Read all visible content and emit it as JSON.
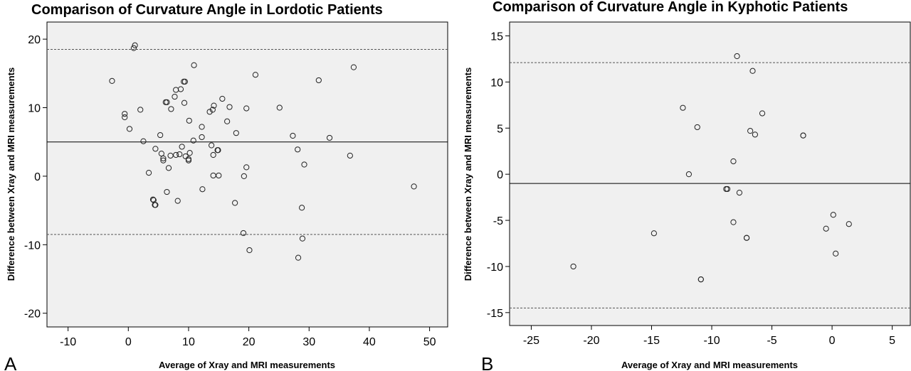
{
  "chart_data": [
    {
      "type": "scatter",
      "panel_label": "A",
      "title": "Comparison of Curvature Angle in Lordotic Patients",
      "xlabel": "Average of Xray and MRI measurements",
      "ylabel": "Difference between Xray and MRI measurements",
      "xlim": [
        -13.5,
        53
      ],
      "ylim": [
        -22,
        22.5
      ],
      "xticks": [
        -10,
        0,
        10,
        20,
        30,
        40,
        50
      ],
      "yticks": [
        -20,
        -10,
        0,
        10,
        20
      ],
      "grid": false,
      "background": "#f0f0f0",
      "reference_lines": {
        "mean": 5.0,
        "upper": 18.5,
        "lower": -8.5
      },
      "points": [
        [
          1.1,
          19.1
        ],
        [
          0.9,
          18.7
        ],
        [
          -2.7,
          13.9
        ],
        [
          37.4,
          15.9
        ],
        [
          31.6,
          14.0
        ],
        [
          21.1,
          14.8
        ],
        [
          10.9,
          16.2
        ],
        [
          9.4,
          13.8
        ],
        [
          9.2,
          13.8
        ],
        [
          8.7,
          12.7
        ],
        [
          7.9,
          12.6
        ],
        [
          7.7,
          11.6
        ],
        [
          6.2,
          10.8
        ],
        [
          6.4,
          10.8
        ],
        [
          9.3,
          10.7
        ],
        [
          15.6,
          11.3
        ],
        [
          16.8,
          10.1
        ],
        [
          14.2,
          10.3
        ],
        [
          14.0,
          9.7
        ],
        [
          13.5,
          9.4
        ],
        [
          7.1,
          9.8
        ],
        [
          2.0,
          9.7
        ],
        [
          -0.6,
          9.1
        ],
        [
          -0.6,
          8.6
        ],
        [
          10.1,
          8.1
        ],
        [
          16.4,
          8.0
        ],
        [
          25.1,
          10.0
        ],
        [
          19.6,
          9.9
        ],
        [
          0.2,
          6.9
        ],
        [
          12.2,
          7.2
        ],
        [
          17.9,
          6.3
        ],
        [
          27.3,
          5.9
        ],
        [
          33.4,
          5.6
        ],
        [
          12.2,
          5.7
        ],
        [
          10.8,
          5.2
        ],
        [
          2.5,
          5.1
        ],
        [
          5.3,
          6.0
        ],
        [
          13.8,
          4.5
        ],
        [
          8.9,
          4.3
        ],
        [
          4.5,
          4.0
        ],
        [
          14.9,
          3.8
        ],
        [
          14.8,
          3.8
        ],
        [
          28.1,
          3.9
        ],
        [
          14.1,
          3.1
        ],
        [
          5.5,
          3.3
        ],
        [
          7.0,
          3.0
        ],
        [
          7.9,
          3.1
        ],
        [
          8.5,
          3.2
        ],
        [
          9.5,
          2.9
        ],
        [
          10.2,
          3.4
        ],
        [
          10.0,
          2.5
        ],
        [
          10.0,
          2.3
        ],
        [
          5.8,
          2.6
        ],
        [
          5.8,
          2.3
        ],
        [
          36.8,
          3.0
        ],
        [
          29.2,
          1.7
        ],
        [
          6.7,
          1.2
        ],
        [
          19.6,
          1.3
        ],
        [
          3.4,
          0.5
        ],
        [
          14.1,
          0.1
        ],
        [
          15.0,
          0.1
        ],
        [
          19.2,
          0.0
        ],
        [
          6.4,
          -2.3
        ],
        [
          12.3,
          -1.9
        ],
        [
          47.4,
          -1.5
        ],
        [
          4.1,
          -3.4
        ],
        [
          4.2,
          -3.5
        ],
        [
          8.2,
          -3.6
        ],
        [
          4.4,
          -4.2
        ],
        [
          4.5,
          -4.2
        ],
        [
          17.7,
          -3.9
        ],
        [
          28.8,
          -4.6
        ],
        [
          19.1,
          -8.3
        ],
        [
          28.9,
          -9.1
        ],
        [
          20.1,
          -10.8
        ],
        [
          28.2,
          -11.9
        ]
      ]
    },
    {
      "type": "scatter",
      "panel_label": "B",
      "title": "Comparison of Curvature Angle in Kyphotic Patients",
      "xlabel": "Average of Xray and MRI measurements",
      "ylabel": "Difference between Xray and MRI measurements",
      "xlim": [
        -26.8,
        6.5
      ],
      "ylim": [
        -16.4,
        16.5
      ],
      "xticks": [
        -25,
        -20,
        -15,
        -10,
        -5,
        0,
        5
      ],
      "yticks": [
        -15,
        -10,
        -5,
        0,
        5,
        10,
        15
      ],
      "grid": false,
      "background": "#f0f0f0",
      "reference_lines": {
        "mean": -1.0,
        "upper": 12.1,
        "lower": -14.5
      },
      "points": [
        [
          -7.9,
          12.8
        ],
        [
          -6.6,
          11.2
        ],
        [
          -12.4,
          7.2
        ],
        [
          -5.8,
          6.6
        ],
        [
          -11.2,
          5.1
        ],
        [
          -6.8,
          4.7
        ],
        [
          -6.4,
          4.3
        ],
        [
          -2.4,
          4.2
        ],
        [
          -2.4,
          4.2
        ],
        [
          -8.2,
          1.4
        ],
        [
          -11.9,
          0.0
        ],
        [
          -8.8,
          -1.6
        ],
        [
          -8.7,
          -1.6
        ],
        [
          -7.7,
          -2.0
        ],
        [
          0.1,
          -4.4
        ],
        [
          -8.2,
          -5.2
        ],
        [
          1.4,
          -5.4
        ],
        [
          -0.5,
          -5.9
        ],
        [
          -14.8,
          -6.4
        ],
        [
          -7.1,
          -6.9
        ],
        [
          -7.1,
          -6.9
        ],
        [
          0.3,
          -8.6
        ],
        [
          -21.5,
          -10.0
        ],
        [
          -10.9,
          -11.4
        ],
        [
          -10.9,
          -11.4
        ]
      ]
    }
  ]
}
